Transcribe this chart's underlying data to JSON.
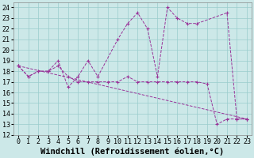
{
  "title": "",
  "xlabel": "Windchill (Refroidissement éolien,°C)",
  "ylabel": "",
  "bg_color": "#cce8e8",
  "line_color": "#993399",
  "grid_color": "#99cccc",
  "xlim": [
    -0.5,
    23.5
  ],
  "ylim": [
    12,
    24.5
  ],
  "xticks": [
    0,
    1,
    2,
    3,
    4,
    5,
    6,
    7,
    8,
    9,
    10,
    11,
    12,
    13,
    14,
    15,
    16,
    17,
    18,
    19,
    20,
    21,
    22,
    23
  ],
  "yticks": [
    12,
    13,
    14,
    15,
    16,
    17,
    18,
    19,
    20,
    21,
    22,
    23,
    24
  ],
  "line1_x": [
    0,
    1,
    2,
    3,
    4,
    5,
    6,
    7,
    8,
    9,
    10,
    11,
    12,
    13,
    14,
    15,
    16,
    17,
    18,
    19,
    20,
    21,
    22,
    23
  ],
  "line1_y": [
    18.5,
    17.5,
    18.0,
    18.0,
    18.5,
    17.5,
    17.0,
    17.0,
    17.0,
    17.0,
    17.0,
    17.5,
    17.0,
    17.0,
    17.0,
    17.0,
    17.0,
    17.0,
    17.0,
    16.8,
    13.0,
    13.5,
    13.5,
    13.5
  ],
  "line2_x": [
    0,
    1,
    2,
    3,
    4,
    5,
    6,
    7,
    8,
    10,
    11,
    12,
    13,
    14,
    15,
    16,
    17,
    18,
    21,
    22,
    23
  ],
  "line2_y": [
    18.5,
    17.5,
    18.0,
    18.0,
    19.0,
    16.5,
    17.5,
    19.0,
    17.5,
    21.0,
    22.5,
    23.5,
    22.0,
    17.5,
    24.0,
    23.0,
    22.5,
    22.5,
    23.5,
    13.5,
    13.5
  ],
  "line3_x": [
    0,
    23
  ],
  "line3_y": [
    18.5,
    13.5
  ],
  "font": "monospace",
  "tick_fontsize": 6,
  "label_fontsize": 7.5
}
